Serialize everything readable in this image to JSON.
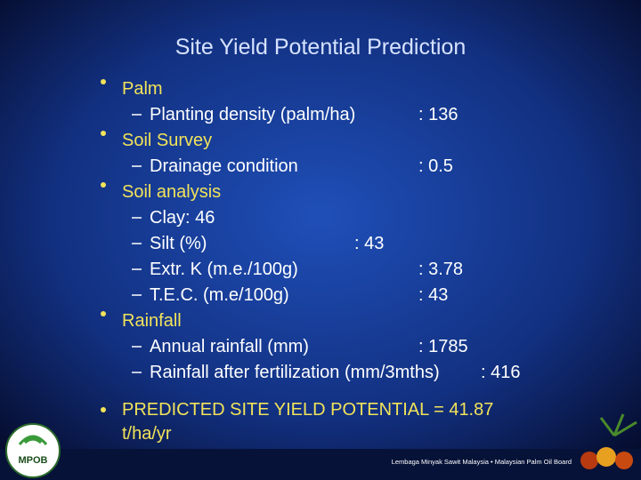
{
  "title": "Site Yield Potential Prediction",
  "items": [
    {
      "label": "Palm",
      "subitems": [
        {
          "label": "Planting density (palm/ha)",
          "value": ": 136"
        }
      ]
    },
    {
      "label": "Soil Survey",
      "subitems": [
        {
          "label": "Drainage condition",
          "value": ": 0.5"
        }
      ]
    },
    {
      "label": "Soil analysis",
      "subitems": [
        {
          "label": "Clay: 46"
        },
        {
          "label": "Silt (%)",
          "value": ": 43"
        },
        {
          "label": "Extr. K (m.e./100g)",
          "value": ": 3.78"
        },
        {
          "label": "T.E.C. (m.e/100g)",
          "value": ": 43"
        }
      ]
    },
    {
      "label": "Rainfall",
      "subitems": [
        {
          "label": "Annual rainfall (mm)",
          "value": ": 1785"
        },
        {
          "label": "Rainfall after fertilization (mm/3mths)",
          "value": ": 416"
        }
      ]
    }
  ],
  "result": {
    "line1": "PREDICTED SITE YIELD POTENTIAL = 41.87",
    "line2": "t/ha/yr"
  },
  "footer": {
    "logo": "MPOB",
    "org": "Lembaga Minyak Sawit Malaysia • Malaysian Palm Oil Board"
  }
}
